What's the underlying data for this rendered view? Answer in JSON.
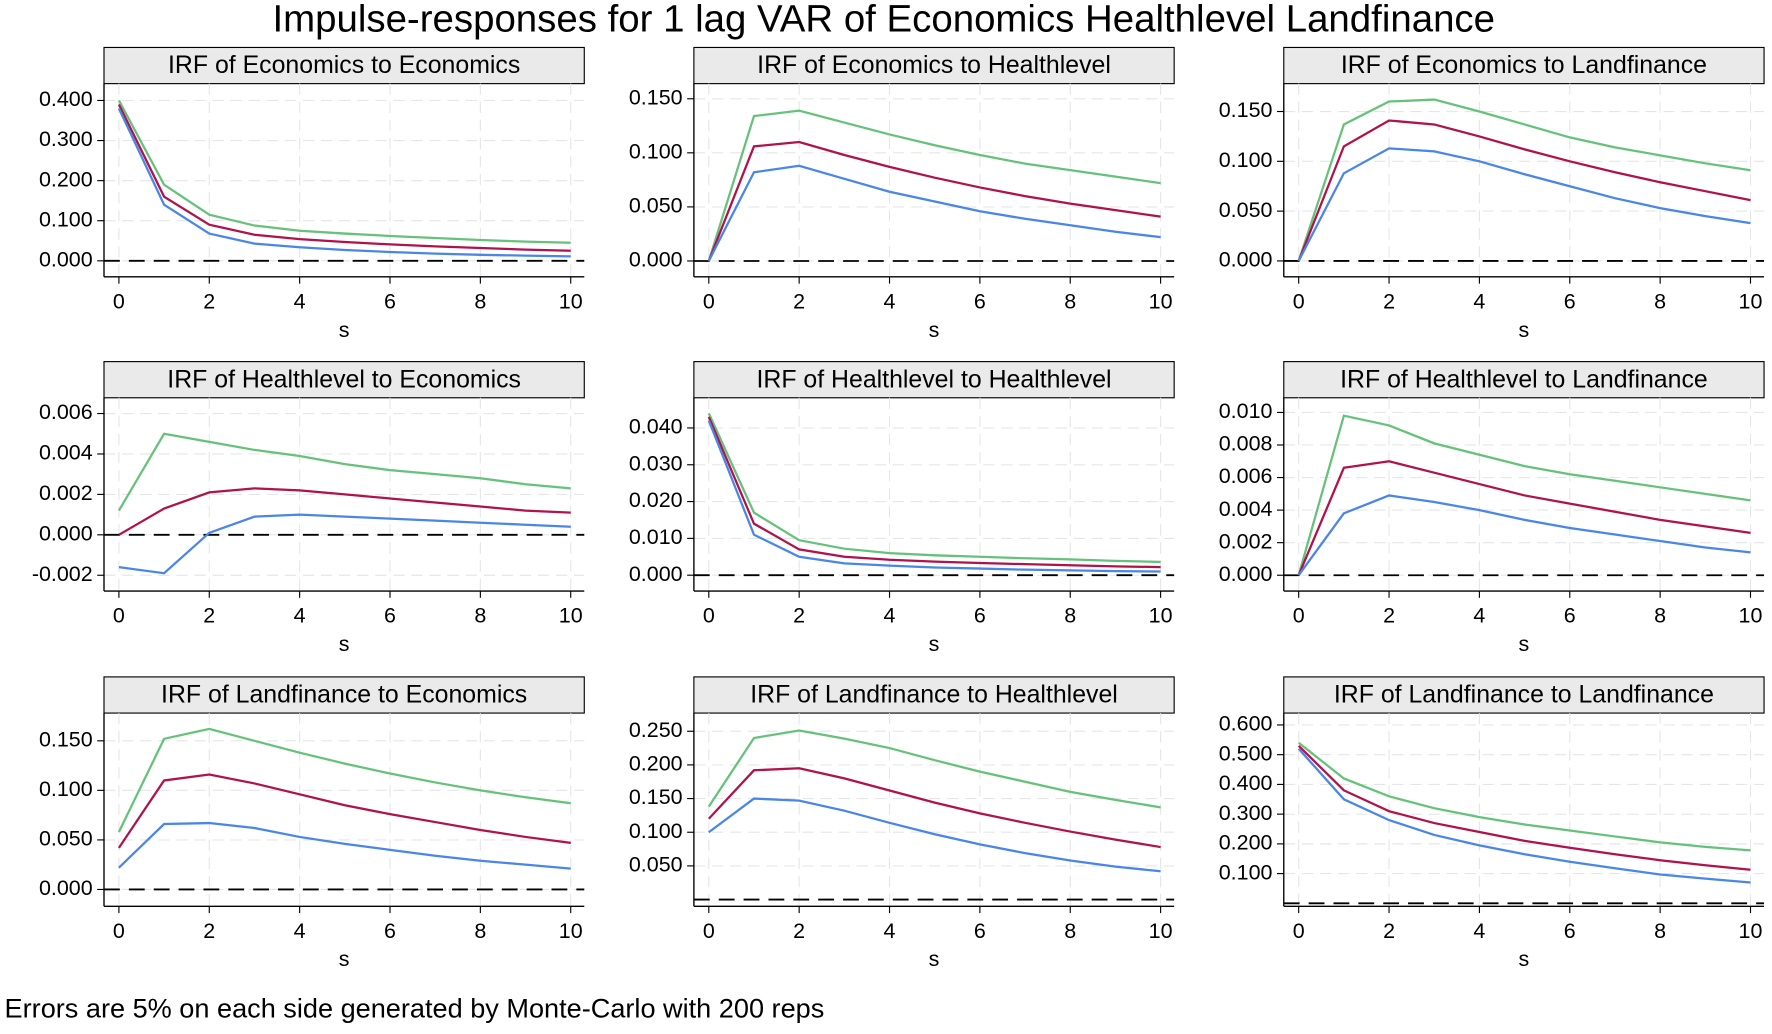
{
  "title": "Impulse-responses for 1 lag VAR of Economics Healthlevel Landfinance",
  "note": "Errors are 5% on each side generated by Monte-Carlo with 200 reps",
  "chart_data": [
    {
      "type": "line",
      "title": "IRF of Economics to Economics",
      "x_label": "s",
      "grid": true,
      "zero_line": true,
      "x": [
        0,
        1,
        2,
        3,
        4,
        5,
        6,
        7,
        8,
        9,
        10
      ],
      "xlim": [
        -0.33,
        10.3
      ],
      "xticks": [
        0,
        2,
        4,
        6,
        8,
        10
      ],
      "ylim": [
        -0.04,
        0.442
      ],
      "yticks": [
        {
          "value": 0,
          "label": "0.000"
        },
        {
          "value": 0.1,
          "label": "0.100"
        },
        {
          "value": 0.2,
          "label": "0.200"
        },
        {
          "value": 0.3,
          "label": "0.300"
        },
        {
          "value": 0.4,
          "label": "0.400"
        }
      ],
      "series": [
        {
          "color": "#66c27a",
          "values": [
            0.4,
            0.19,
            0.115,
            0.088,
            0.075,
            0.068,
            0.062,
            0.057,
            0.052,
            0.048,
            0.045
          ]
        },
        {
          "color": "#b0124a",
          "values": [
            0.39,
            0.16,
            0.09,
            0.065,
            0.054,
            0.047,
            0.041,
            0.036,
            0.032,
            0.028,
            0.025
          ]
        },
        {
          "color": "#4a86e8",
          "values": [
            0.38,
            0.14,
            0.068,
            0.043,
            0.034,
            0.027,
            0.022,
            0.018,
            0.015,
            0.013,
            0.011
          ]
        }
      ]
    },
    {
      "type": "line",
      "title": "IRF of Economics to Healthlevel",
      "x_label": "s",
      "grid": true,
      "zero_line": true,
      "x": [
        0,
        1,
        2,
        3,
        4,
        5,
        6,
        7,
        8,
        9,
        10
      ],
      "xlim": [
        -0.33,
        10.3
      ],
      "xticks": [
        0,
        2,
        4,
        6,
        8,
        10
      ],
      "ylim": [
        -0.0147,
        0.164
      ],
      "yticks": [
        {
          "value": 0,
          "label": "0.000"
        },
        {
          "value": 0.05,
          "label": "0.050"
        },
        {
          "value": 0.1,
          "label": "0.100"
        },
        {
          "value": 0.15,
          "label": "0.150"
        }
      ],
      "series": [
        {
          "color": "#66c27a",
          "values": [
            0,
            0.134,
            0.139,
            0.128,
            0.117,
            0.107,
            0.098,
            0.09,
            0.084,
            0.078,
            0.072
          ]
        },
        {
          "color": "#b0124a",
          "values": [
            0,
            0.106,
            0.11,
            0.098,
            0.087,
            0.077,
            0.068,
            0.06,
            0.053,
            0.047,
            0.041
          ]
        },
        {
          "color": "#4a86e8",
          "values": [
            0,
            0.082,
            0.088,
            0.076,
            0.064,
            0.055,
            0.046,
            0.039,
            0.033,
            0.027,
            0.022
          ]
        }
      ]
    },
    {
      "type": "line",
      "title": "IRF of Economics to Landfinance",
      "x_label": "s",
      "grid": true,
      "zero_line": true,
      "x": [
        0,
        1,
        2,
        3,
        4,
        5,
        6,
        7,
        8,
        9,
        10
      ],
      "xlim": [
        -0.33,
        10.3
      ],
      "xticks": [
        0,
        2,
        4,
        6,
        8,
        10
      ],
      "ylim": [
        -0.016,
        0.178
      ],
      "yticks": [
        {
          "value": 0,
          "label": "0.000"
        },
        {
          "value": 0.05,
          "label": "0.050"
        },
        {
          "value": 0.1,
          "label": "0.100"
        },
        {
          "value": 0.15,
          "label": "0.150"
        }
      ],
      "series": [
        {
          "color": "#66c27a",
          "values": [
            0,
            0.137,
            0.16,
            0.162,
            0.15,
            0.137,
            0.124,
            0.114,
            0.106,
            0.098,
            0.091
          ]
        },
        {
          "color": "#b0124a",
          "values": [
            0,
            0.115,
            0.141,
            0.137,
            0.125,
            0.112,
            0.1,
            0.089,
            0.079,
            0.07,
            0.061
          ]
        },
        {
          "color": "#4a86e8",
          "values": [
            0,
            0.088,
            0.113,
            0.11,
            0.1,
            0.087,
            0.075,
            0.063,
            0.053,
            0.045,
            0.038
          ]
        }
      ]
    },
    {
      "type": "line",
      "title": "IRF of Healthlevel to Economics",
      "x_label": "s",
      "grid": true,
      "zero_line": true,
      "x": [
        0,
        1,
        2,
        3,
        4,
        5,
        6,
        7,
        8,
        9,
        10
      ],
      "xlim": [
        -0.33,
        10.3
      ],
      "xticks": [
        0,
        2,
        4,
        6,
        8,
        10
      ],
      "ylim": [
        -0.00278,
        0.00678
      ],
      "yticks": [
        {
          "value": -0.002,
          "label": "-0.002"
        },
        {
          "value": 0,
          "label": "0.000"
        },
        {
          "value": 0.002,
          "label": "0.002"
        },
        {
          "value": 0.004,
          "label": "0.004"
        },
        {
          "value": 0.006,
          "label": "0.006"
        }
      ],
      "series": [
        {
          "color": "#66c27a",
          "values": [
            0.0012,
            0.005,
            0.0046,
            0.0042,
            0.0039,
            0.0035,
            0.0032,
            0.003,
            0.0028,
            0.0025,
            0.0023
          ]
        },
        {
          "color": "#b0124a",
          "values": [
            0,
            0.0013,
            0.0021,
            0.0023,
            0.0022,
            0.002,
            0.0018,
            0.0016,
            0.0014,
            0.0012,
            0.0011
          ]
        },
        {
          "color": "#4a86e8",
          "values": [
            -0.0016,
            -0.0019,
            0.0001,
            0.0009,
            0.001,
            0.0009,
            0.0008,
            0.0007,
            0.0006,
            0.0005,
            0.0004
          ]
        }
      ]
    },
    {
      "type": "line",
      "title": "IRF of Healthlevel to Healthlevel",
      "x_label": "s",
      "grid": true,
      "zero_line": true,
      "x": [
        0,
        1,
        2,
        3,
        4,
        5,
        6,
        7,
        8,
        9,
        10
      ],
      "xlim": [
        -0.33,
        10.3
      ],
      "xticks": [
        0,
        2,
        4,
        6,
        8,
        10
      ],
      "ylim": [
        -0.0043,
        0.0482
      ],
      "yticks": [
        {
          "value": 0,
          "label": "0.000"
        },
        {
          "value": 0.01,
          "label": "0.010"
        },
        {
          "value": 0.02,
          "label": "0.020"
        },
        {
          "value": 0.03,
          "label": "0.030"
        },
        {
          "value": 0.04,
          "label": "0.040"
        }
      ],
      "series": [
        {
          "color": "#66c27a",
          "values": [
            0.044,
            0.017,
            0.0095,
            0.0072,
            0.006,
            0.0054,
            0.005,
            0.0046,
            0.0043,
            0.0039,
            0.0036
          ]
        },
        {
          "color": "#b0124a",
          "values": [
            0.043,
            0.014,
            0.007,
            0.005,
            0.0042,
            0.0037,
            0.0033,
            0.003,
            0.0027,
            0.0024,
            0.0022
          ]
        },
        {
          "color": "#4a86e8",
          "values": [
            0.042,
            0.011,
            0.005,
            0.0032,
            0.0026,
            0.0021,
            0.0018,
            0.0015,
            0.0013,
            0.0011,
            0.001
          ]
        }
      ]
    },
    {
      "type": "line",
      "title": "IRF of Healthlevel to Landfinance",
      "x_label": "s",
      "grid": true,
      "zero_line": true,
      "x": [
        0,
        1,
        2,
        3,
        4,
        5,
        6,
        7,
        8,
        9,
        10
      ],
      "xlim": [
        -0.33,
        10.3
      ],
      "xticks": [
        0,
        2,
        4,
        6,
        8,
        10
      ],
      "ylim": [
        -0.00097,
        0.0109
      ],
      "yticks": [
        {
          "value": 0,
          "label": "0.000"
        },
        {
          "value": 0.002,
          "label": "0.002"
        },
        {
          "value": 0.004,
          "label": "0.004"
        },
        {
          "value": 0.006,
          "label": "0.006"
        },
        {
          "value": 0.008,
          "label": "0.008"
        },
        {
          "value": 0.01,
          "label": "0.010"
        }
      ],
      "series": [
        {
          "color": "#66c27a",
          "values": [
            0,
            0.0098,
            0.0092,
            0.0081,
            0.0074,
            0.0067,
            0.0062,
            0.0058,
            0.0054,
            0.005,
            0.0046
          ]
        },
        {
          "color": "#b0124a",
          "values": [
            0,
            0.0066,
            0.007,
            0.0063,
            0.0056,
            0.0049,
            0.0044,
            0.0039,
            0.0034,
            0.003,
            0.0026
          ]
        },
        {
          "color": "#4a86e8",
          "values": [
            0,
            0.0038,
            0.0049,
            0.0045,
            0.004,
            0.0034,
            0.0029,
            0.0025,
            0.0021,
            0.0017,
            0.0014
          ]
        }
      ]
    },
    {
      "type": "line",
      "title": "IRF of Landfinance to Economics",
      "x_label": "s",
      "grid": true,
      "zero_line": true,
      "x": [
        0,
        1,
        2,
        3,
        4,
        5,
        6,
        7,
        8,
        9,
        10
      ],
      "xlim": [
        -0.33,
        10.3
      ],
      "xticks": [
        0,
        2,
        4,
        6,
        8,
        10
      ],
      "ylim": [
        -0.017,
        0.178
      ],
      "yticks": [
        {
          "value": 0,
          "label": "0.000"
        },
        {
          "value": 0.05,
          "label": "0.050"
        },
        {
          "value": 0.1,
          "label": "0.100"
        },
        {
          "value": 0.15,
          "label": "0.150"
        }
      ],
      "series": [
        {
          "color": "#66c27a",
          "values": [
            0.058,
            0.152,
            0.162,
            0.15,
            0.138,
            0.127,
            0.117,
            0.108,
            0.1,
            0.093,
            0.087
          ]
        },
        {
          "color": "#b0124a",
          "values": [
            0.042,
            0.11,
            0.116,
            0.107,
            0.096,
            0.085,
            0.076,
            0.068,
            0.06,
            0.053,
            0.047
          ]
        },
        {
          "color": "#4a86e8",
          "values": [
            0.022,
            0.066,
            0.067,
            0.062,
            0.053,
            0.046,
            0.04,
            0.034,
            0.029,
            0.025,
            0.021
          ]
        }
      ]
    },
    {
      "type": "line",
      "title": "IRF of Landfinance to Healthlevel",
      "x_label": "s",
      "grid": true,
      "zero_line": true,
      "x": [
        0,
        1,
        2,
        3,
        4,
        5,
        6,
        7,
        8,
        9,
        10
      ],
      "xlim": [
        -0.33,
        10.3
      ],
      "xticks": [
        0,
        2,
        4,
        6,
        8,
        10
      ],
      "ylim": [
        -0.01,
        0.277
      ],
      "yticks": [
        {
          "value": 0.05,
          "label": "0.050"
        },
        {
          "value": 0.1,
          "label": "0.100"
        },
        {
          "value": 0.15,
          "label": "0.150"
        },
        {
          "value": 0.2,
          "label": "0.200"
        },
        {
          "value": 0.25,
          "label": "0.250"
        }
      ],
      "series": [
        {
          "color": "#66c27a",
          "values": [
            0.138,
            0.24,
            0.251,
            0.239,
            0.225,
            0.207,
            0.19,
            0.175,
            0.16,
            0.148,
            0.137
          ]
        },
        {
          "color": "#b0124a",
          "values": [
            0.12,
            0.192,
            0.195,
            0.18,
            0.162,
            0.144,
            0.128,
            0.114,
            0.101,
            0.089,
            0.078
          ]
        },
        {
          "color": "#4a86e8",
          "values": [
            0.1,
            0.15,
            0.147,
            0.132,
            0.114,
            0.097,
            0.082,
            0.069,
            0.058,
            0.049,
            0.042
          ]
        }
      ]
    },
    {
      "type": "line",
      "title": "IRF of Landfinance to Landfinance",
      "x_label": "s",
      "grid": true,
      "zero_line": true,
      "x": [
        0,
        1,
        2,
        3,
        4,
        5,
        6,
        7,
        8,
        9,
        10
      ],
      "xlim": [
        -0.33,
        10.3
      ],
      "xticks": [
        0,
        2,
        4,
        6,
        8,
        10
      ],
      "ylim": [
        -0.01,
        0.64
      ],
      "yticks": [
        {
          "value": 0.1,
          "label": "0.100"
        },
        {
          "value": 0.2,
          "label": "0.200"
        },
        {
          "value": 0.3,
          "label": "0.300"
        },
        {
          "value": 0.4,
          "label": "0.400"
        },
        {
          "value": 0.5,
          "label": "0.500"
        },
        {
          "value": 0.6,
          "label": "0.600"
        }
      ],
      "series": [
        {
          "color": "#66c27a",
          "values": [
            0.54,
            0.42,
            0.36,
            0.32,
            0.29,
            0.265,
            0.245,
            0.225,
            0.205,
            0.19,
            0.178
          ]
        },
        {
          "color": "#b0124a",
          "values": [
            0.53,
            0.38,
            0.31,
            0.27,
            0.24,
            0.21,
            0.187,
            0.165,
            0.145,
            0.128,
            0.113
          ]
        },
        {
          "color": "#4a86e8",
          "values": [
            0.52,
            0.35,
            0.28,
            0.23,
            0.195,
            0.165,
            0.14,
            0.118,
            0.097,
            0.083,
            0.07
          ]
        }
      ]
    }
  ]
}
